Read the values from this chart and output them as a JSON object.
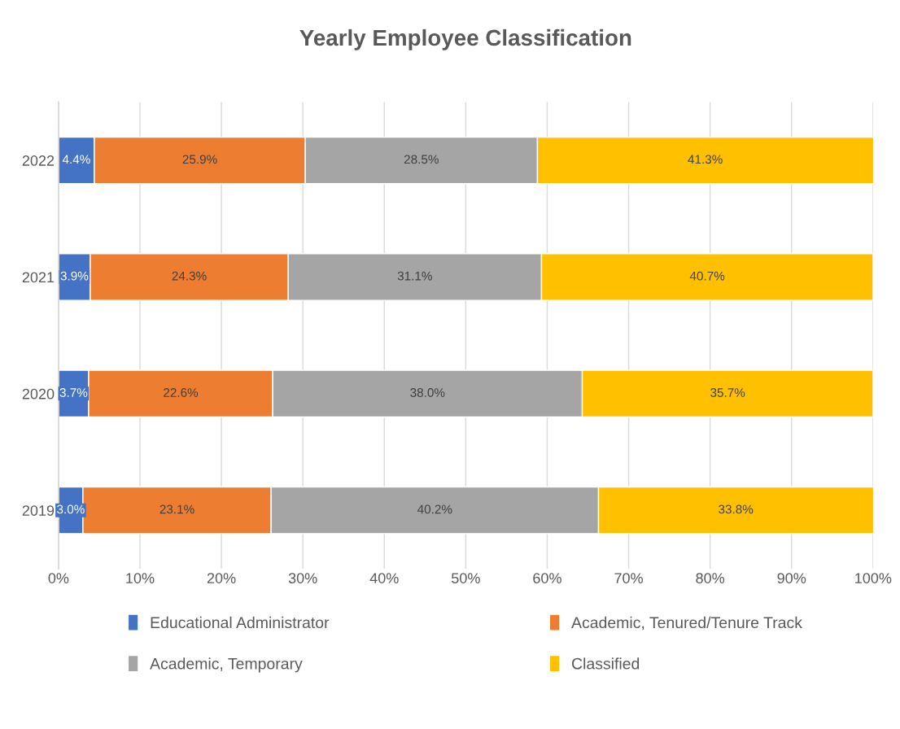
{
  "chart_data": {
    "type": "bar",
    "orientation": "horizontal",
    "stacked": true,
    "title": "Yearly Employee Classification",
    "categories": [
      "2022",
      "2021",
      "2020",
      "2019"
    ],
    "series": [
      {
        "name": "Educational Administrator",
        "color": "#4472c4",
        "values": [
          4.4,
          3.9,
          3.7,
          3.0
        ],
        "value_labels": [
          "4.4%",
          "3.9%",
          "3.7%",
          "3.0%"
        ]
      },
      {
        "name": "Academic, Tenured/Tenure Track",
        "color": "#ed7d31",
        "values": [
          25.9,
          24.3,
          22.6,
          23.1
        ],
        "value_labels": [
          "25.9%",
          "24.3%",
          "22.6%",
          "23.1%"
        ]
      },
      {
        "name": "Academic, Temporary",
        "color": "#a5a5a5",
        "values": [
          28.5,
          31.1,
          38.0,
          40.2
        ],
        "value_labels": [
          "28.5%",
          "31.1%",
          "38.0%",
          "40.2%"
        ]
      },
      {
        "name": "Classified",
        "color": "#ffc000",
        "values": [
          41.3,
          40.7,
          35.7,
          33.8
        ],
        "value_labels": [
          "41.3%",
          "40.7%",
          "35.7%",
          "33.8%"
        ]
      }
    ],
    "xlim": [
      0,
      100
    ],
    "xticks": [
      {
        "value": 0,
        "label": "0%"
      },
      {
        "value": 10,
        "label": "10%"
      },
      {
        "value": 20,
        "label": "20%"
      },
      {
        "value": 30,
        "label": "30%"
      },
      {
        "value": 40,
        "label": "40%"
      },
      {
        "value": 50,
        "label": "50%"
      },
      {
        "value": 60,
        "label": "60%"
      },
      {
        "value": 70,
        "label": "70%"
      },
      {
        "value": 80,
        "label": "80%"
      },
      {
        "value": 90,
        "label": "90%"
      },
      {
        "value": 100,
        "label": "100%"
      }
    ],
    "grid": "x",
    "legend": "bottom"
  }
}
